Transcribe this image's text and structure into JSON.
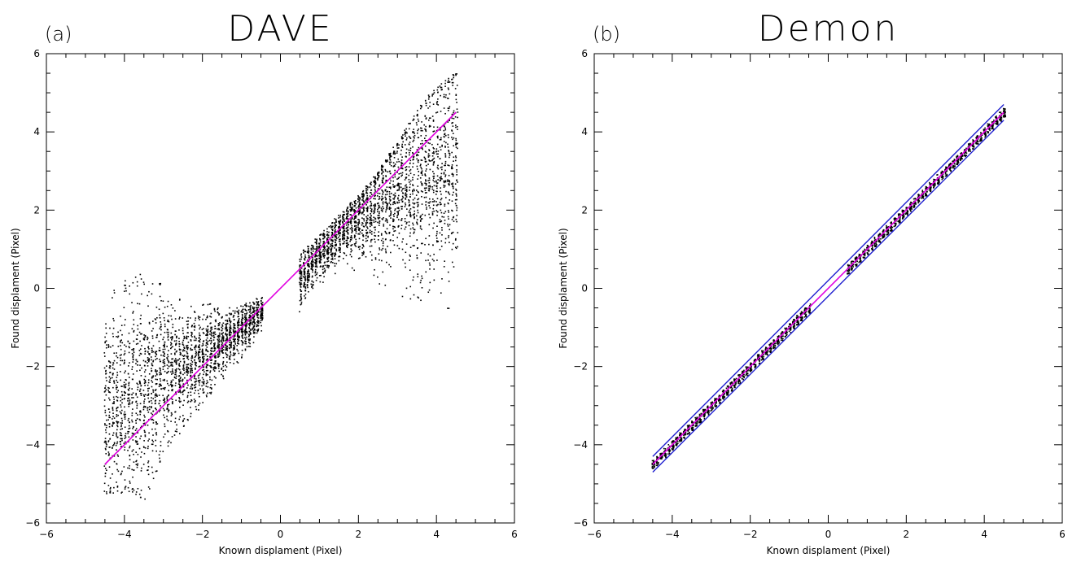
{
  "chart_data": [
    {
      "type": "scatter",
      "panel_label": "(a)",
      "title": "DAVE",
      "xlabel": "Known displament (Pixel)",
      "ylabel": "Found displament (Pixel)",
      "xlim": [
        -6,
        6
      ],
      "ylim": [
        -6,
        6
      ],
      "xticks": [
        -6,
        -4,
        -2,
        0,
        2,
        4,
        6
      ],
      "yticks": [
        -6,
        -4,
        -2,
        0,
        2,
        4,
        6
      ],
      "grid": false,
      "series_color": "#000000",
      "x_range_points": [
        [
          -4.5,
          -0.5
        ],
        [
          0.5,
          4.5
        ]
      ],
      "scatter_profile": [
        {
          "x": -4.5,
          "center": -3.0,
          "low": -5.3,
          "high": 0.2
        },
        {
          "x": -4.0,
          "center": -2.9,
          "low": -5.2,
          "high": 0.3
        },
        {
          "x": -3.5,
          "center": -2.6,
          "low": -5.4,
          "high": 0.4
        },
        {
          "x": -3.0,
          "center": -2.2,
          "low": -4.2,
          "high": 0.1
        },
        {
          "x": -2.5,
          "center": -2.0,
          "low": -3.6,
          "high": -0.2
        },
        {
          "x": -2.0,
          "center": -1.7,
          "low": -3.0,
          "high": -0.3
        },
        {
          "x": -1.5,
          "center": -1.4,
          "low": -2.3,
          "high": -0.5
        },
        {
          "x": -1.0,
          "center": -1.0,
          "low": -1.8,
          "high": -0.4
        },
        {
          "x": -0.5,
          "center": -0.6,
          "low": -1.2,
          "high": -0.2
        },
        {
          "x": 0.5,
          "center": 0.3,
          "low": -0.6,
          "high": 0.9
        },
        {
          "x": 1.0,
          "center": 0.9,
          "low": 0.0,
          "high": 1.4
        },
        {
          "x": 1.5,
          "center": 1.4,
          "low": 0.3,
          "high": 1.9
        },
        {
          "x": 2.0,
          "center": 1.8,
          "low": 0.2,
          "high": 2.4
        },
        {
          "x": 2.5,
          "center": 2.2,
          "low": 0.0,
          "high": 3.0
        },
        {
          "x": 3.0,
          "center": 2.5,
          "low": -0.2,
          "high": 3.8
        },
        {
          "x": 3.5,
          "center": 2.8,
          "low": -0.3,
          "high": 4.6
        },
        {
          "x": 4.0,
          "center": 3.0,
          "low": -0.5,
          "high": 5.2
        },
        {
          "x": 4.5,
          "center": 3.2,
          "low": -0.6,
          "high": 5.6
        }
      ],
      "reference_line": {
        "x": [
          -4.5,
          4.5
        ],
        "y": [
          -4.5,
          4.5
        ],
        "color": "#e000e0"
      }
    },
    {
      "type": "scatter",
      "panel_label": "(b)",
      "title": "Demon",
      "xlabel": "Known displament (Pixel)",
      "ylabel": "Found displament (Pixel)",
      "xlim": [
        -6,
        6
      ],
      "ylim": [
        -6,
        6
      ],
      "xticks": [
        -6,
        -4,
        -2,
        0,
        2,
        4,
        6
      ],
      "yticks": [
        -6,
        -4,
        -2,
        0,
        2,
        4,
        6
      ],
      "grid": false,
      "series_color": "#000000",
      "x_range_points": [
        [
          -4.5,
          -0.5
        ],
        [
          0.5,
          4.5
        ]
      ],
      "scatter_band_halfwidth": 0.12,
      "reference_line": {
        "x": [
          -4.5,
          4.5
        ],
        "y": [
          -4.5,
          4.5
        ],
        "color": "#e000e0"
      },
      "bound_lines": [
        {
          "x": [
            -4.5,
            4.5
          ],
          "y": [
            -4.3,
            4.7
          ],
          "color": "#2020d0"
        },
        {
          "x": [
            -4.5,
            4.5
          ],
          "y": [
            -4.7,
            4.3
          ],
          "color": "#2020d0"
        }
      ]
    }
  ]
}
